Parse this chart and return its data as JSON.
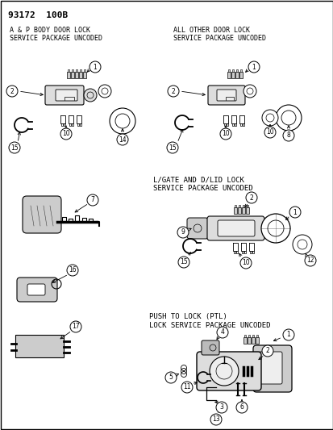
{
  "title": "93172  100B",
  "bg_color": "#ffffff",
  "s1_title_l1": "A & P BODY DOOR LOCK",
  "s1_title_l2": "SERVICE PACKAGE UNCODED",
  "s2_title_l1": "ALL OTHER DOOR LOCK",
  "s2_title_l2": "SERVICE PACKAGE UNCODED",
  "s3_title_l1": "L/GATE AND D/LID LOCK",
  "s3_title_l2": "SERVICE PACKAGE UNCODED",
  "s4_title_l1": "PUSH TO LOCK (PTL)",
  "s4_title_l2": "LOCK SERVICE PACKAGE UNCODED",
  "fig_width": 4.14,
  "fig_height": 5.33,
  "dpi": 100
}
